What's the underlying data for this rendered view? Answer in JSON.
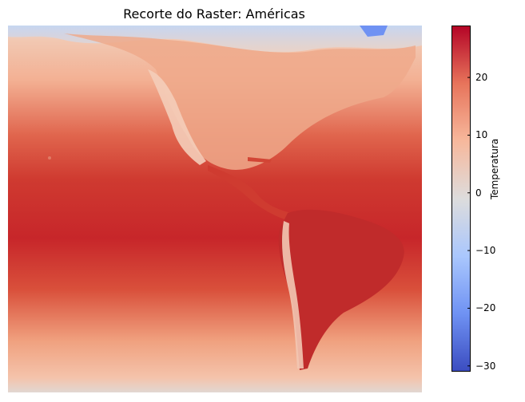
{
  "title": "Recorte do Raster: Américas",
  "colormap": "coolwarm",
  "colorbar": {
    "label": "Temperatura",
    "min": -31,
    "max": 29,
    "ticks": [
      {
        "value": 20,
        "label": "20"
      },
      {
        "value": 10,
        "label": "10"
      },
      {
        "value": 0,
        "label": "0"
      },
      {
        "value": -10,
        "label": "−10"
      },
      {
        "value": -20,
        "label": "−20"
      },
      {
        "value": -30,
        "label": "−30"
      }
    ],
    "colors": [
      "#3b4cc0",
      "#6f92f3",
      "#aac7fd",
      "#dddcdc",
      "#f7b89c",
      "#e7745b",
      "#b40426"
    ]
  }
}
